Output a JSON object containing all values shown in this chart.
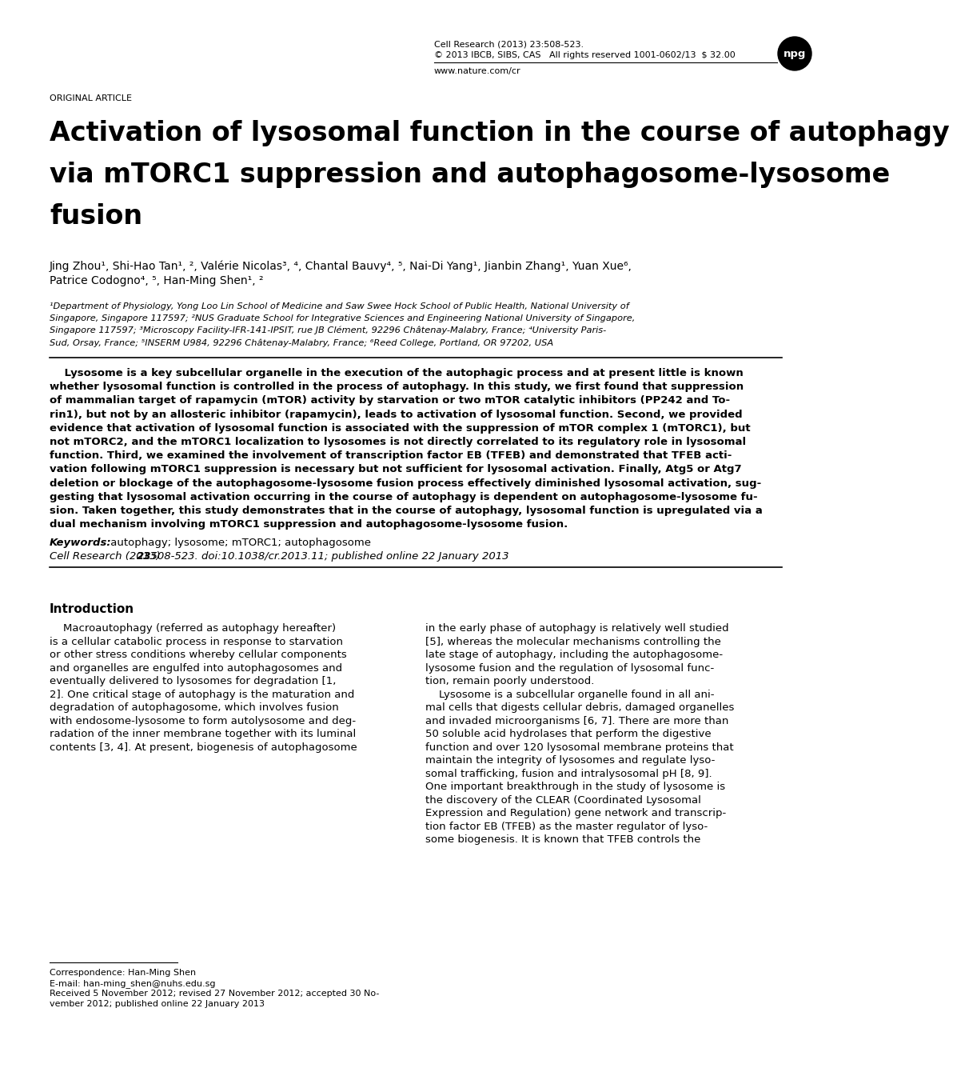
{
  "background_color": "#ffffff",
  "header_left": "ORIGINAL ARTICLE",
  "header_right_line1": "Cell Research (2013) 23:508-523.",
  "header_right_line2": "© 2013 IBCB, SIBS, CAS   All rights reserved 1001-0602/13  $ 32.00",
  "header_right_line3": "www.nature.com/cr",
  "npg_logo": "npg",
  "title_line1": "Activation of lysosomal function in the course of autophagy",
  "title_line2": "via mTORC1 suppression and autophagosome-lysosome",
  "title_line3": "fusion",
  "author_line1": "Jing Zhou¹, Shi-Hao Tan¹, ², Valérie Nicolas³, ⁴, Chantal Bauvy⁴, ⁵, Nai-Di Yang¹, Jianbin Zhang¹, Yuan Xue⁶,",
  "author_line2": "Patrice Codogno⁴, ⁵, Han-Ming Shen¹, ²",
  "affil_line1": "¹Department of Physiology, Yong Loo Lin School of Medicine and Saw Swee Hock School of Public Health, National University of",
  "affil_line2": "Singapore, Singapore 117597; ²NUS Graduate School for Integrative Sciences and Engineering National University of Singapore,",
  "affil_line3": "Singapore 117597; ³Microscopy Facility-IFR-141-IPSIT, rue JB Clément, 92296 Châtenay-Malabry, France; ⁴University Paris-",
  "affil_line4": "Sud, Orsay, France; ⁵INSERM U984, 92296 Châtenay-Malabry, France; ⁶Reed College, Portland, OR 97202, USA",
  "abstract_indent": "    Lysosome is a key subcellular organelle in the execution of the autophagic process and at present little is known",
  "abstract_l2": "whether lysosomal function is controlled in the process of autophagy. In this study, we first found that suppression",
  "abstract_l3": "of mammalian target of rapamycin (mTOR) activity by starvation or two mTOR catalytic inhibitors (PP242 and To-",
  "abstract_l4": "rin1), but not by an allosteric inhibitor (rapamycin), leads to activation of lysosomal function. Second, we provided",
  "abstract_l5": "evidence that activation of lysosomal function is associated with the suppression of mTOR complex 1 (mTORC1), but",
  "abstract_l6": "not mTORC2, and the mTORC1 localization to lysosomes is not directly correlated to its regulatory role in lysosomal",
  "abstract_l7": "function. Third, we examined the involvement of transcription factor EB (TFEB) and demonstrated that TFEB acti-",
  "abstract_l8": "vation following mTORC1 suppression is necessary but not sufficient for lysosomal activation. Finally, Atg5 or Atg7",
  "abstract_l9": "deletion or blockage of the autophagosome-lysosome fusion process effectively diminished lysosomal activation, sug-",
  "abstract_l10": "gesting that lysosomal activation occurring in the course of autophagy is dependent on autophagosome-lysosome fu-",
  "abstract_l11": "sion. Taken together, this study demonstrates that in the course of autophagy, lysosomal function is upregulated via a",
  "abstract_l12": "dual mechanism involving mTORC1 suppression and autophagosome-lysosome fusion.",
  "keywords_label": "Keywords:",
  "keywords": " autophagy; lysosome; mTORC1; autophagosome",
  "ref_italic_pre": "Cell Research ",
  "ref_paren": "(2013) ",
  "ref_bold": "23",
  "ref_rest": ":508-523. doi:10.1038/cr.2013.11; published online 22 January 2013",
  "intro_heading": "Introduction",
  "intro_c1_l1": "    Macroautophagy (referred as autophagy hereafter)",
  "intro_c1_l2": "is a cellular catabolic process in response to starvation",
  "intro_c1_l3": "or other stress conditions whereby cellular components",
  "intro_c1_l4": "and organelles are engulfed into autophagosomes and",
  "intro_c1_l5": "eventually delivered to lysosomes for degradation [1,",
  "intro_c1_l6": "2]. One critical stage of autophagy is the maturation and",
  "intro_c1_l7": "degradation of autophagosome, which involves fusion",
  "intro_c1_l8": "with endosome-lysosome to form autolysosome and deg-",
  "intro_c1_l9": "radation of the inner membrane together with its luminal",
  "intro_c1_l10": "contents [3, 4]. At present, biogenesis of autophagosome",
  "intro_c2_l1": "in the early phase of autophagy is relatively well studied",
  "intro_c2_l2": "[5], whereas the molecular mechanisms controlling the",
  "intro_c2_l3": "late stage of autophagy, including the autophagosome-",
  "intro_c2_l4": "lysosome fusion and the regulation of lysosomal func-",
  "intro_c2_l5": "tion, remain poorly understood.",
  "intro_c2_l6": "    Lysosome is a subcellular organelle found in all ani-",
  "intro_c2_l7": "mal cells that digests cellular debris, damaged organelles",
  "intro_c2_l8": "and invaded microorganisms [6, 7]. There are more than",
  "intro_c2_l9": "50 soluble acid hydrolases that perform the digestive",
  "intro_c2_l10": "function and over 120 lysosomal membrane proteins that",
  "intro_c2_l11": "maintain the integrity of lysosomes and regulate lyso-",
  "intro_c2_l12": "somal trafficking, fusion and intralysosomal pH [8, 9].",
  "intro_c2_l13": "One important breakthrough in the study of lysosome is",
  "intro_c2_l14": "the discovery of the CLEAR (Coordinated Lysosomal",
  "intro_c2_l15": "Expression and Regulation) gene network and transcrip-",
  "intro_c2_l16": "tion factor EB (TFEB) as the master regulator of lyso-",
  "intro_c2_l17": "some biogenesis. It is known that TFEB controls the",
  "footnote_line1": "Correspondence: Han-Ming Shen",
  "footnote_line2": "E-mail: han-ming_shen@nuhs.edu.sg",
  "footnote_line3": "Received 5 November 2012; revised 27 November 2012; accepted 30 No-",
  "footnote_line4": "vember 2012; published online 22 January 2013"
}
